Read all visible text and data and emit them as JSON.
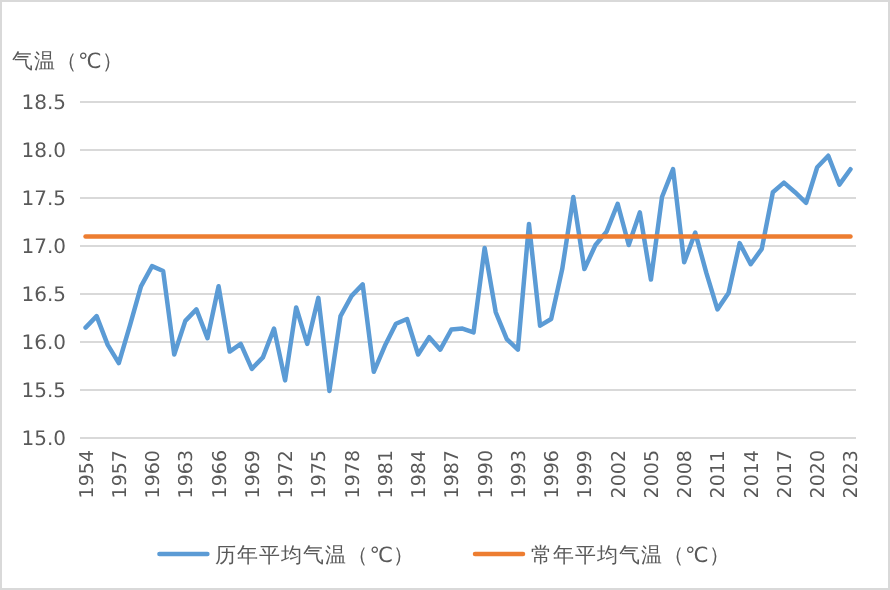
{
  "chart_data": {
    "type": "line",
    "ylabel": "气温（℃）",
    "categories": [
      "1954",
      null,
      null,
      "1957",
      null,
      null,
      "1960",
      null,
      null,
      "1963",
      null,
      null,
      "1966",
      null,
      null,
      "1969",
      null,
      null,
      "1972",
      null,
      null,
      "1975",
      null,
      null,
      "1978",
      null,
      null,
      "1981",
      null,
      null,
      "1984",
      null,
      null,
      "1987",
      null,
      null,
      "1990",
      null,
      null,
      "1993",
      null,
      null,
      "1996",
      null,
      null,
      "1999",
      null,
      null,
      "2002",
      null,
      null,
      "2005",
      null,
      null,
      "2008",
      null,
      null,
      "2011",
      null,
      null,
      "2014",
      null,
      null,
      "2017",
      null,
      null,
      "2020",
      null,
      null,
      "2023"
    ],
    "series": [
      {
        "name": "历年平均气温（℃）",
        "color": "#5b9bd5",
        "values": [
          16.15,
          16.27,
          15.97,
          15.78,
          16.17,
          16.58,
          16.79,
          16.74,
          15.87,
          16.22,
          16.34,
          16.04,
          16.58,
          15.9,
          15.98,
          15.72,
          15.84,
          16.14,
          15.6,
          16.36,
          15.98,
          16.46,
          15.49,
          16.27,
          16.48,
          16.6,
          15.69,
          15.96,
          16.19,
          16.24,
          15.87,
          16.05,
          15.92,
          16.13,
          16.14,
          16.1,
          16.98,
          16.31,
          16.03,
          15.92,
          17.23,
          16.17,
          16.24,
          16.76,
          17.51,
          16.76,
          17.01,
          17.15,
          17.44,
          17.01,
          17.35,
          16.65,
          17.51,
          17.8,
          16.83,
          17.14,
          16.72,
          16.34,
          16.51,
          17.03,
          16.81,
          16.97,
          17.56,
          17.66,
          17.56,
          17.45,
          17.82,
          17.94,
          17.64,
          17.8
        ]
      },
      {
        "name": "常年平均气温（℃）",
        "color": "#ed7d31",
        "values": [
          17.1,
          17.1,
          17.1,
          17.1,
          17.1,
          17.1,
          17.1,
          17.1,
          17.1,
          17.1,
          17.1,
          17.1,
          17.1,
          17.1,
          17.1,
          17.1,
          17.1,
          17.1,
          17.1,
          17.1,
          17.1,
          17.1,
          17.1,
          17.1,
          17.1,
          17.1,
          17.1,
          17.1,
          17.1,
          17.1,
          17.1,
          17.1,
          17.1,
          17.1,
          17.1,
          17.1,
          17.1,
          17.1,
          17.1,
          17.1,
          17.1,
          17.1,
          17.1,
          17.1,
          17.1,
          17.1,
          17.1,
          17.1,
          17.1,
          17.1,
          17.1,
          17.1,
          17.1,
          17.1,
          17.1,
          17.1,
          17.1,
          17.1,
          17.1,
          17.1,
          17.1,
          17.1,
          17.1,
          17.1,
          17.1,
          17.1,
          17.1,
          17.1,
          17.1,
          17.1
        ]
      }
    ],
    "ylim": [
      15,
      18.5
    ],
    "yticks": [
      {
        "value": 15,
        "label": "15.0"
      },
      {
        "value": 15.5,
        "label": "15.5"
      },
      {
        "value": 16,
        "label": "16.0"
      },
      {
        "value": 16.5,
        "label": "16.5"
      },
      {
        "value": 17,
        "label": "17.0"
      },
      {
        "value": 17.5,
        "label": "17.5"
      },
      {
        "value": 18,
        "label": "18.0"
      },
      {
        "value": 18.5,
        "label": "18.5"
      }
    ],
    "grid": "y",
    "legend": "bottom"
  }
}
